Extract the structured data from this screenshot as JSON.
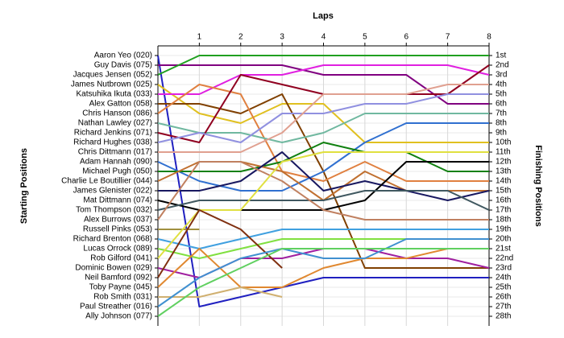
{
  "chart_data": {
    "type": "line",
    "x_label": "Laps",
    "y_label": "Starting Positions",
    "y2_label": "Finishing Positions",
    "x": [
      0,
      1,
      2,
      3,
      4,
      5,
      6,
      7,
      8
    ],
    "xlim": [
      0,
      8
    ],
    "xticks": [
      1,
      2,
      3,
      4,
      5,
      6,
      7,
      8
    ],
    "ylim": [
      29,
      0
    ],
    "grid": true,
    "y2ticks": [
      {
        "value": 1,
        "label": "1st"
      },
      {
        "value": 2,
        "label": "2nd"
      },
      {
        "value": 3,
        "label": "3rd"
      },
      {
        "value": 4,
        "label": "4th"
      },
      {
        "value": 5,
        "label": "5th"
      },
      {
        "value": 6,
        "label": "6th"
      },
      {
        "value": 7,
        "label": "7th"
      },
      {
        "value": 8,
        "label": "8th"
      },
      {
        "value": 9,
        "label": "9th"
      },
      {
        "value": 10,
        "label": "10th"
      },
      {
        "value": 11,
        "label": "11th"
      },
      {
        "value": 12,
        "label": "12th"
      },
      {
        "value": 13,
        "label": "13th"
      },
      {
        "value": 14,
        "label": "14th"
      },
      {
        "value": 15,
        "label": "15th"
      },
      {
        "value": 16,
        "label": "16th"
      },
      {
        "value": 17,
        "label": "17th"
      },
      {
        "value": 18,
        "label": "18th"
      },
      {
        "value": 19,
        "label": "19th"
      },
      {
        "value": 20,
        "label": "20th"
      },
      {
        "value": 21,
        "label": "21st"
      },
      {
        "value": 22,
        "label": "22nd"
      },
      {
        "value": 23,
        "label": "23rd"
      },
      {
        "value": 24,
        "label": "24th"
      },
      {
        "value": 25,
        "label": "25th"
      },
      {
        "value": 26,
        "label": "26th"
      },
      {
        "value": 27,
        "label": "27th"
      },
      {
        "value": 28,
        "label": "28th"
      }
    ],
    "series": [
      {
        "name": "Aaron Yeo (020)",
        "color": "#2020c0",
        "values": [
          1,
          27,
          26,
          25,
          24,
          24,
          24,
          24,
          24
        ]
      },
      {
        "name": "Guy Davis (075)",
        "color": "#800080",
        "values": [
          2,
          2,
          2,
          2,
          3,
          3,
          3,
          6,
          6
        ]
      },
      {
        "name": "Jacques Jensen (052)",
        "color": "#20a020",
        "values": [
          3,
          1,
          1,
          1,
          1,
          1,
          1,
          1,
          1
        ]
      },
      {
        "name": "James Nutbrown (025)",
        "color": "#e0c020",
        "values": [
          4,
          7,
          8,
          6,
          6,
          10,
          10,
          10,
          10
        ]
      },
      {
        "name": "Katsuhika Ikuta (033)",
        "color": "#e020e0",
        "values": [
          5,
          5,
          3,
          3,
          2,
          2,
          2,
          2,
          3
        ]
      },
      {
        "name": "Alex Gatton (058)",
        "color": "#804000",
        "values": [
          6,
          6,
          7,
          5,
          13,
          23,
          23,
          23,
          23
        ]
      },
      {
        "name": "Chris Hanson (086)",
        "color": "#e08040",
        "values": [
          7,
          4,
          5,
          13,
          14,
          12,
          14,
          14,
          14
        ]
      },
      {
        "name": "Nathan Lawley (027)",
        "color": "#70b8a0",
        "values": [
          8,
          9,
          9,
          10,
          9,
          7,
          7,
          7,
          7
        ]
      },
      {
        "name": "Richard Jenkins (071)",
        "color": "#900020",
        "values": [
          9,
          10,
          3,
          4,
          5,
          5,
          5,
          5,
          2
        ]
      },
      {
        "name": "Richard Hughes (038)",
        "color": "#9090e0",
        "values": [
          10,
          9,
          10,
          7,
          7,
          6,
          6,
          5,
          5
        ]
      },
      {
        "name": "Chris Dittmann (017)",
        "color": "#e0a090",
        "values": [
          11,
          11,
          11,
          9,
          5,
          5,
          5,
          4,
          4
        ]
      },
      {
        "name": "Adam Hannah (090)",
        "color": "#3070d0",
        "values": [
          12,
          14,
          15,
          15,
          13,
          10,
          8,
          8,
          8
        ]
      },
      {
        "name": "Michael Pugh (050)",
        "color": "#108010",
        "values": [
          13,
          13,
          13,
          12,
          10,
          11,
          11,
          13,
          13
        ]
      },
      {
        "name": "Charlie Le Boutillier (044)",
        "color": "#c07030",
        "values": [
          14,
          12,
          12,
          13,
          16,
          13,
          15,
          15,
          15
        ]
      },
      {
        "name": "James Glenister (022)",
        "color": "#181860",
        "values": [
          15,
          15,
          14,
          11,
          15,
          14,
          15,
          16,
          15
        ]
      },
      {
        "name": "Mat Dittmann (074)",
        "color": "#000000",
        "values": [
          16,
          17,
          17,
          17,
          17,
          16,
          12,
          12,
          12
        ]
      },
      {
        "name": "Tom Thompson (032)",
        "color": "#405860",
        "values": [
          17,
          16,
          16,
          16,
          16,
          15,
          15,
          15,
          17
        ]
      },
      {
        "name": "Alex Burrows (037)",
        "color": "#c08060",
        "values": [
          18,
          12,
          12,
          14,
          17,
          18,
          18,
          18,
          18
        ]
      },
      {
        "name": "Russell Pinks (053)",
        "color": "#a09040",
        "values": [
          19,
          19,
          null,
          null,
          null,
          null,
          null,
          null,
          null
        ]
      },
      {
        "name": "Richard Brenton (068)",
        "color": "#40a0e0",
        "values": [
          20,
          21,
          20,
          19,
          19,
          19,
          19,
          19,
          19
        ]
      },
      {
        "name": "Lucas Orrock (089)",
        "color": "#80e040",
        "values": [
          21,
          22,
          21,
          20,
          20,
          20,
          20,
          20,
          20
        ]
      },
      {
        "name": "Rob Gilford (041)",
        "color": "#e0e040",
        "values": [
          22,
          17,
          17,
          12,
          11,
          11,
          11,
          11,
          11
        ]
      },
      {
        "name": "Dominic Bowen (029)",
        "color": "#a020a0",
        "values": [
          23,
          24,
          22,
          22,
          21,
          21,
          22,
          22,
          23
        ]
      },
      {
        "name": "Neil Bamford (092)",
        "color": "#803010",
        "values": [
          24,
          17,
          19,
          23,
          null,
          null,
          null,
          null,
          null
        ]
      },
      {
        "name": "Toby Payne (045)",
        "color": "#e08830",
        "values": [
          25,
          21,
          25,
          25,
          23,
          22,
          22,
          21,
          21
        ]
      },
      {
        "name": "Rob Smith (031)",
        "color": "#d0b070",
        "values": [
          26,
          26,
          25,
          26,
          null,
          null,
          null,
          null,
          null
        ]
      },
      {
        "name": "Paul Streather (016)",
        "color": "#4090d0",
        "values": [
          27,
          24,
          22,
          21,
          22,
          22,
          20,
          20,
          20
        ]
      },
      {
        "name": "Ally Johnson (077)",
        "color": "#60d060",
        "values": [
          28,
          25,
          23,
          21,
          21,
          21,
          21,
          21,
          21
        ]
      }
    ]
  }
}
